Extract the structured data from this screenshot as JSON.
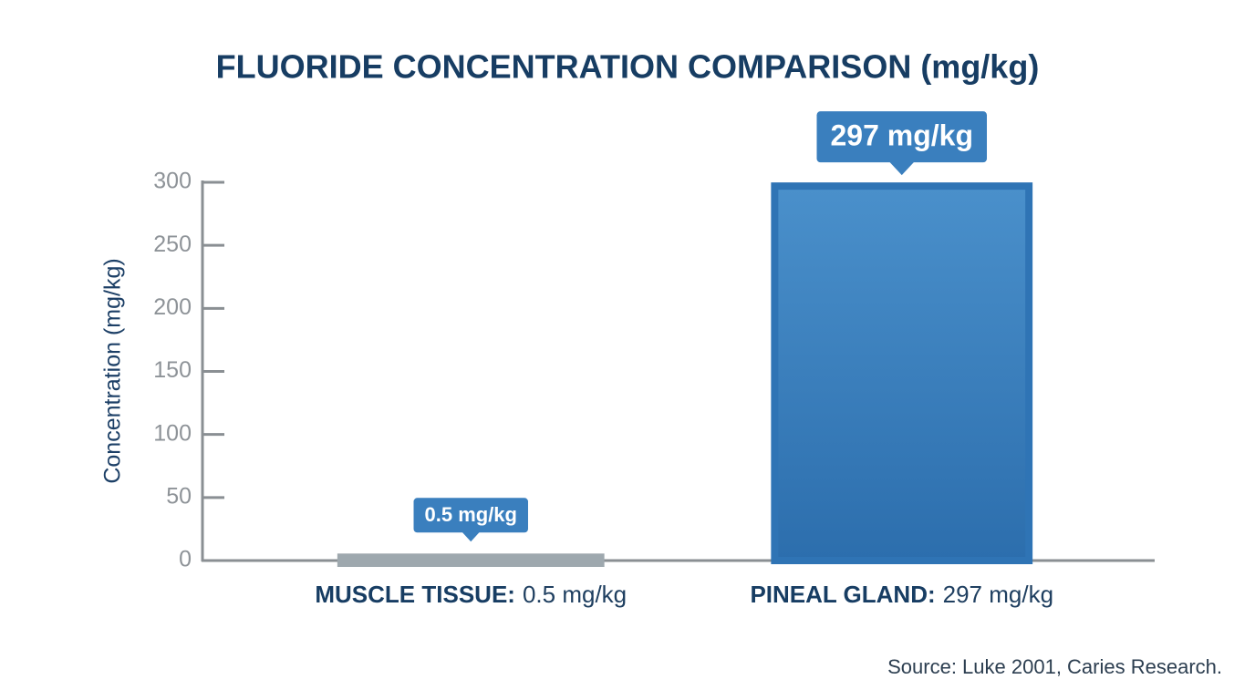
{
  "chart_data": {
    "type": "bar",
    "title": "FLUORIDE CONCENTRATION COMPARISON (mg/kg)",
    "y_label": "Concentration (mg/kg)",
    "categories": [
      "MUSCLE TISSUE:",
      "PINEAL GLAND:"
    ],
    "values": [
      0.5,
      297
    ],
    "value_labels": [
      "0.5 mg/kg",
      "297 mg/kg"
    ],
    "colors": [
      "#9ea8ae",
      "#3a84c2"
    ],
    "ylim": [
      0,
      300
    ],
    "yticks": [
      0,
      50,
      100,
      150,
      200,
      250,
      300
    ],
    "grid": false,
    "source": "Source: Luke 2001, Caries Research."
  }
}
